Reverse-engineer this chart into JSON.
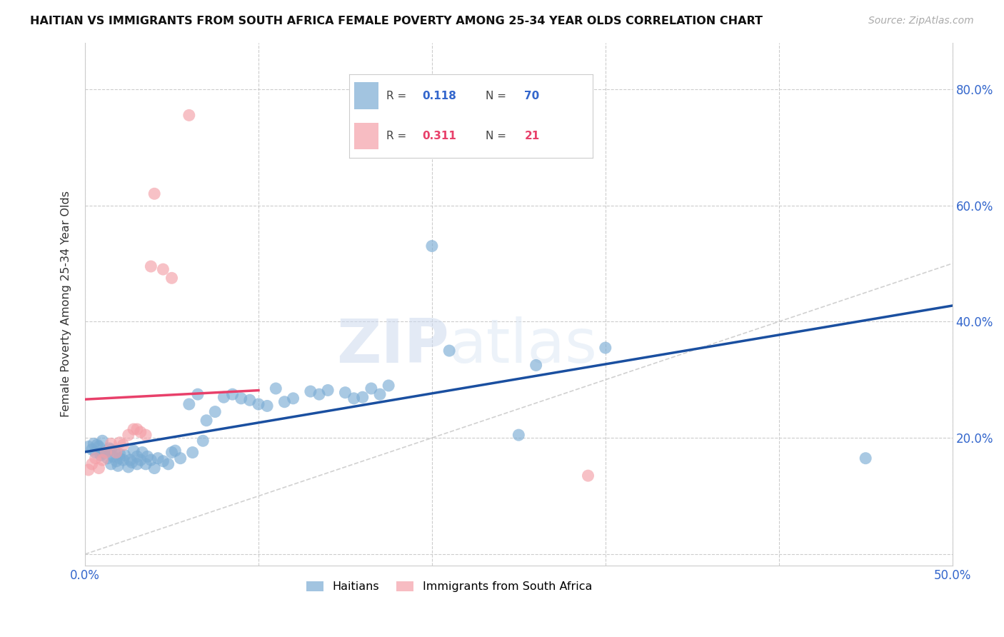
{
  "title": "HAITIAN VS IMMIGRANTS FROM SOUTH AFRICA FEMALE POVERTY AMONG 25-34 YEAR OLDS CORRELATION CHART",
  "source": "Source: ZipAtlas.com",
  "ylabel": "Female Poverty Among 25-34 Year Olds",
  "xlim": [
    0.0,
    0.5
  ],
  "ylim": [
    -0.02,
    0.88
  ],
  "xticks": [
    0.0,
    0.1,
    0.2,
    0.3,
    0.4,
    0.5
  ],
  "yticks": [
    0.0,
    0.2,
    0.4,
    0.6,
    0.8
  ],
  "xtick_labels_show": [
    "0.0%",
    "50.0%"
  ],
  "xtick_labels_show_pos": [
    0.0,
    0.5
  ],
  "ytick_labels_right": [
    "",
    "20.0%",
    "40.0%",
    "60.0%",
    "80.0%"
  ],
  "background_color": "#ffffff",
  "grid_color": "#cccccc",
  "watermark_zip": "ZIP",
  "watermark_atlas": "atlas",
  "blue_R": 0.118,
  "blue_N": 70,
  "pink_R": 0.311,
  "pink_N": 21,
  "blue_color": "#7bacd4",
  "pink_color": "#f4a0a8",
  "blue_line_color": "#1a4fa0",
  "pink_line_color": "#e8406a",
  "diag_line_color": "#cccccc",
  "legend_label_blue": "Haitians",
  "legend_label_pink": "Immigrants from South Africa",
  "blue_scatter_x": [
    0.002,
    0.004,
    0.005,
    0.006,
    0.007,
    0.008,
    0.009,
    0.01,
    0.01,
    0.012,
    0.013,
    0.014,
    0.015,
    0.015,
    0.016,
    0.017,
    0.018,
    0.019,
    0.02,
    0.02,
    0.022,
    0.023,
    0.025,
    0.026,
    0.027,
    0.028,
    0.03,
    0.03,
    0.032,
    0.033,
    0.035,
    0.036,
    0.038,
    0.04,
    0.042,
    0.045,
    0.048,
    0.05,
    0.052,
    0.055,
    0.06,
    0.062,
    0.065,
    0.068,
    0.07,
    0.075,
    0.08,
    0.085,
    0.09,
    0.095,
    0.1,
    0.105,
    0.11,
    0.115,
    0.12,
    0.13,
    0.135,
    0.14,
    0.15,
    0.155,
    0.16,
    0.165,
    0.17,
    0.175,
    0.2,
    0.21,
    0.25,
    0.26,
    0.3,
    0.45
  ],
  "blue_scatter_y": [
    0.185,
    0.18,
    0.19,
    0.175,
    0.188,
    0.185,
    0.17,
    0.175,
    0.195,
    0.175,
    0.165,
    0.182,
    0.18,
    0.155,
    0.168,
    0.178,
    0.16,
    0.152,
    0.165,
    0.172,
    0.162,
    0.17,
    0.15,
    0.162,
    0.158,
    0.178,
    0.168,
    0.155,
    0.162,
    0.175,
    0.155,
    0.168,
    0.162,
    0.148,
    0.165,
    0.16,
    0.155,
    0.175,
    0.178,
    0.165,
    0.258,
    0.175,
    0.275,
    0.195,
    0.23,
    0.245,
    0.27,
    0.275,
    0.268,
    0.265,
    0.258,
    0.255,
    0.285,
    0.262,
    0.268,
    0.28,
    0.275,
    0.282,
    0.278,
    0.268,
    0.27,
    0.285,
    0.275,
    0.29,
    0.53,
    0.35,
    0.205,
    0.325,
    0.355,
    0.165
  ],
  "pink_scatter_x": [
    0.002,
    0.004,
    0.006,
    0.008,
    0.01,
    0.012,
    0.015,
    0.018,
    0.02,
    0.022,
    0.025,
    0.028,
    0.03,
    0.032,
    0.035,
    0.038,
    0.04,
    0.045,
    0.05,
    0.06,
    0.29
  ],
  "pink_scatter_y": [
    0.145,
    0.155,
    0.165,
    0.148,
    0.162,
    0.175,
    0.19,
    0.175,
    0.192,
    0.188,
    0.205,
    0.215,
    0.215,
    0.21,
    0.205,
    0.495,
    0.62,
    0.49,
    0.475,
    0.755,
    0.135
  ]
}
